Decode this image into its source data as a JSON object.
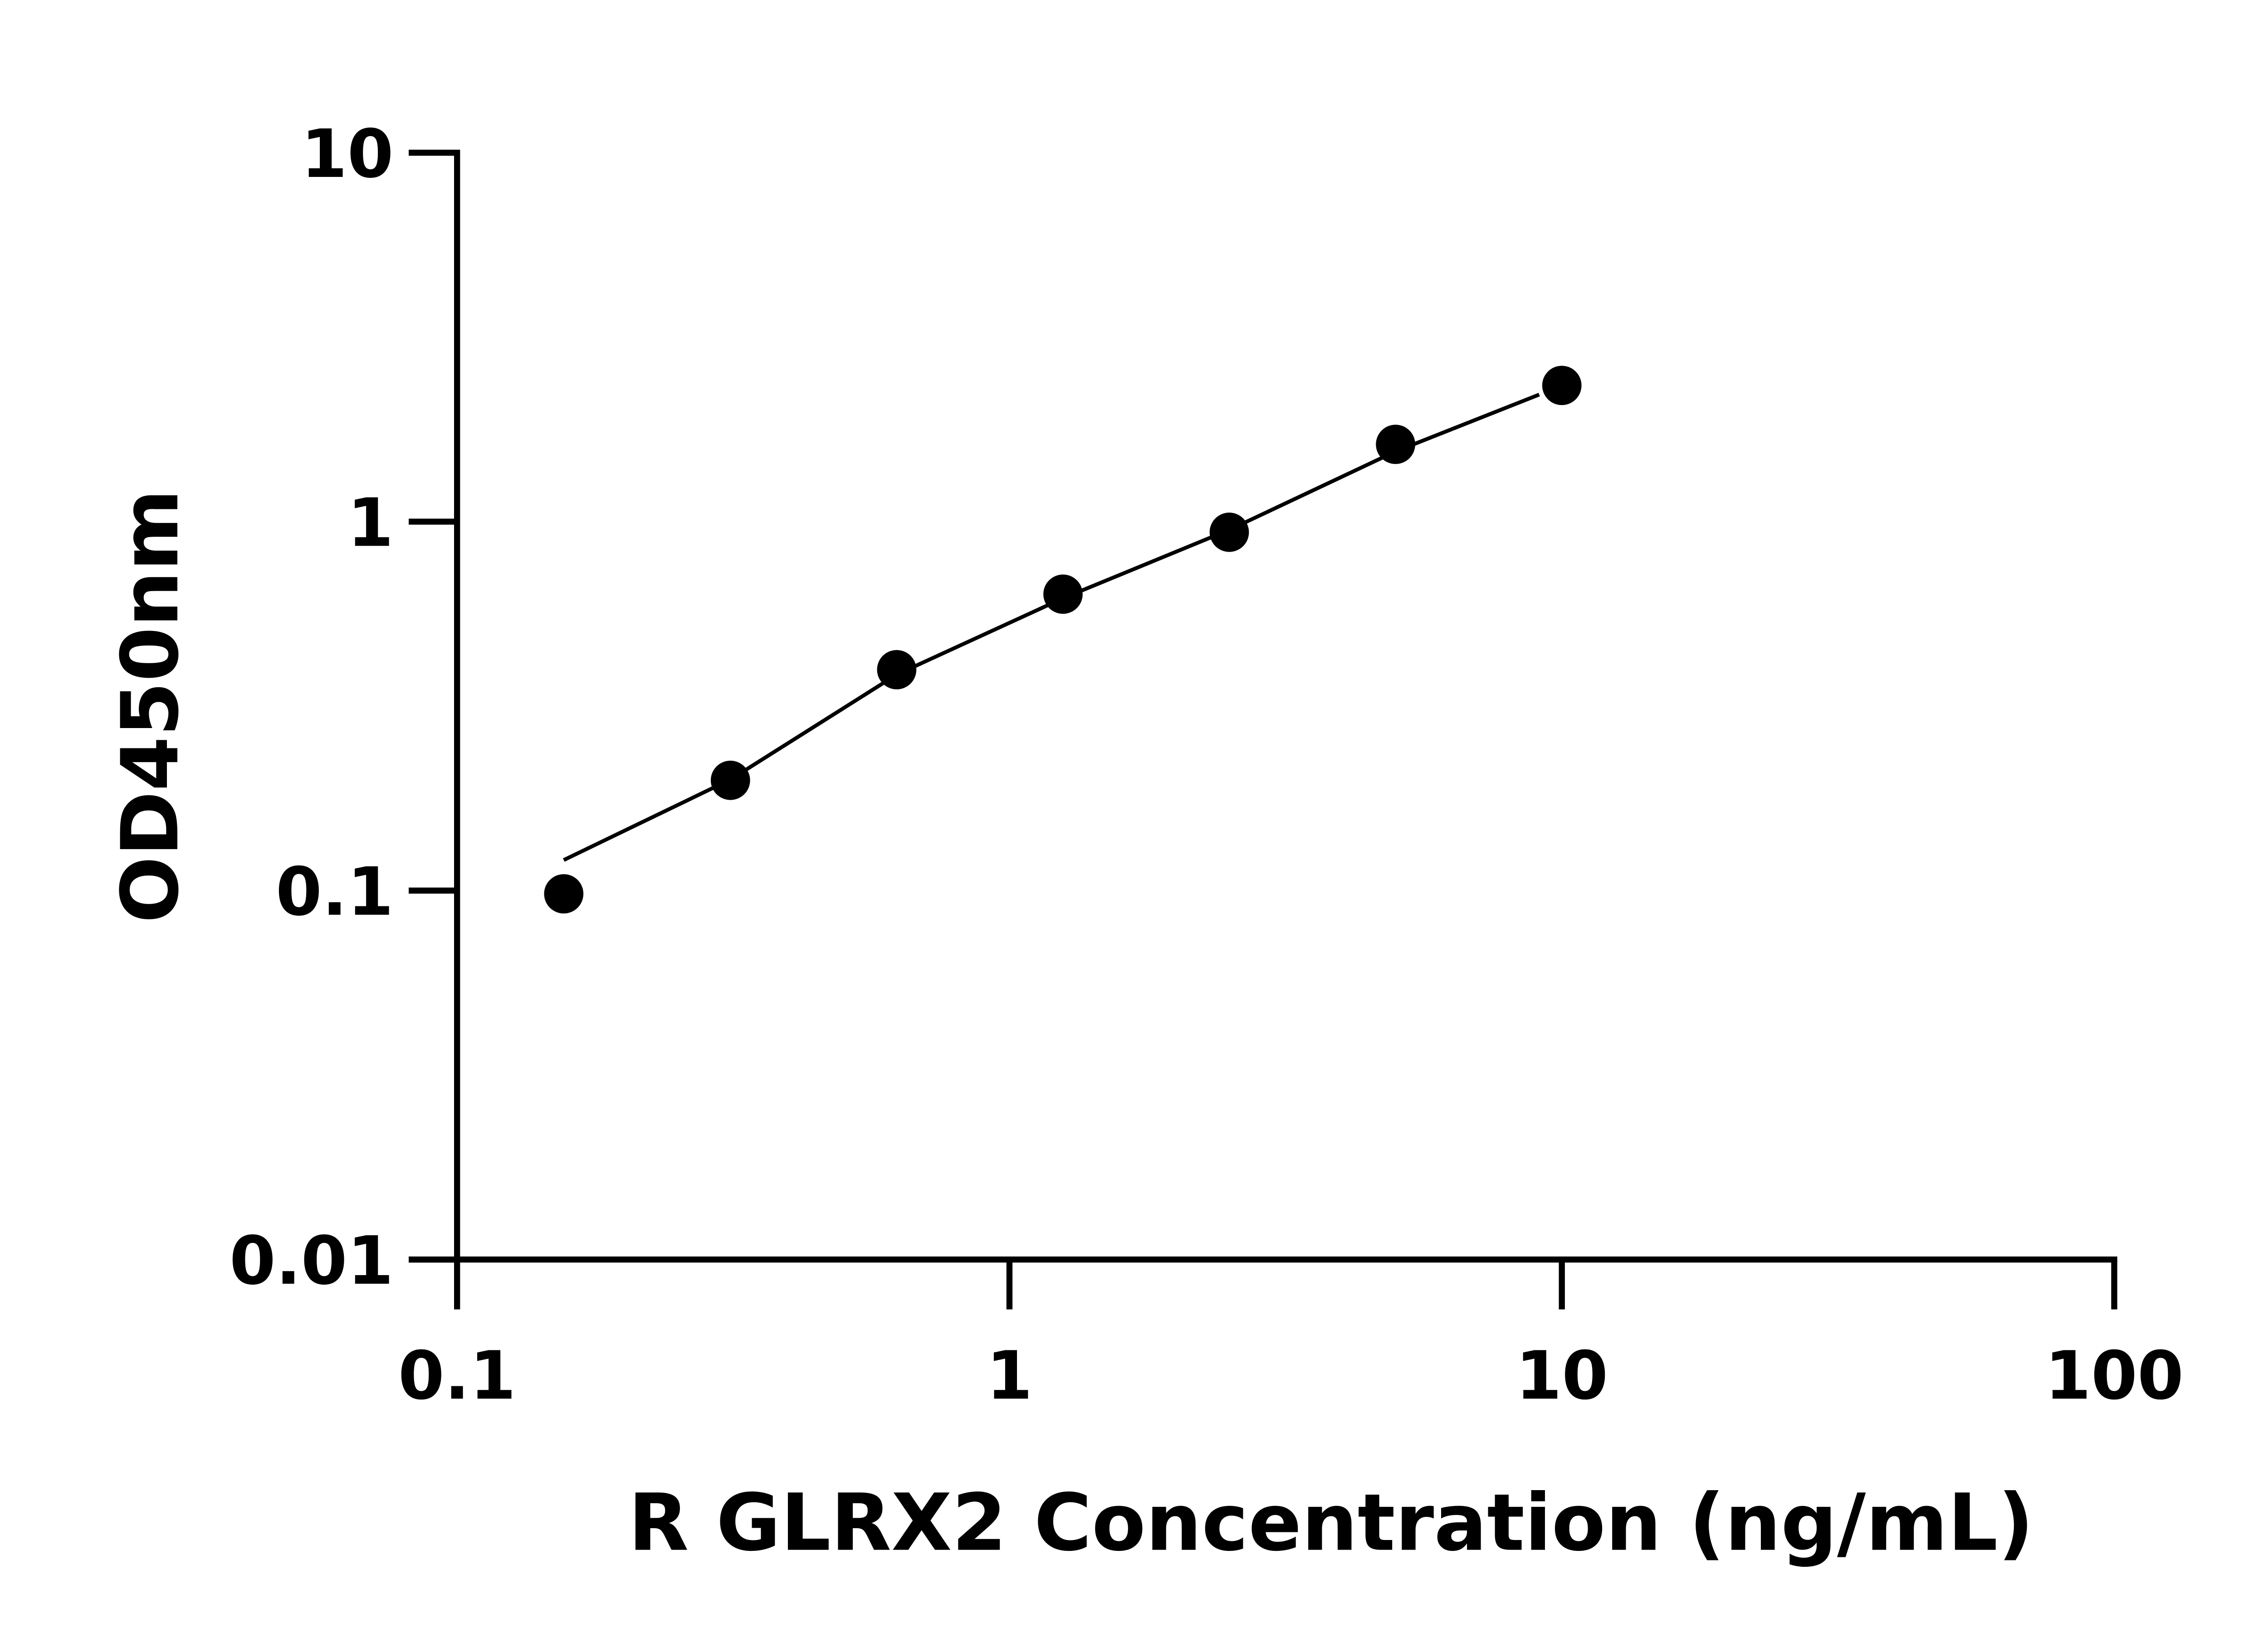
{
  "chart_data": {
    "type": "scatter",
    "xlabel": "R GLRX2 Concentration (ng/mL)",
    "ylabel": "OD450nm",
    "x_scale": "log",
    "y_scale": "log",
    "xlim": [
      0.1,
      100
    ],
    "ylim": [
      0.01,
      10
    ],
    "x_ticks": [
      "0.1",
      "1",
      "10",
      "100"
    ],
    "y_ticks": [
      "0.01",
      "0.1",
      "1",
      "10"
    ],
    "grid": false,
    "series": [
      {
        "x": [
          0.156,
          0.3125,
          0.625,
          1.25,
          2.5,
          5,
          10
        ],
        "y": [
          0.098,
          0.199,
          0.397,
          0.636,
          0.936,
          1.62,
          2.34
        ],
        "marker": "filled-circle",
        "color": "#000000"
      }
    ],
    "fit_curve": {
      "x": [
        0.156,
        0.3125,
        0.625,
        1.25,
        2.5,
        5,
        9.1
      ],
      "y": [
        0.121,
        0.2,
        0.385,
        0.62,
        0.95,
        1.55,
        2.21
      ],
      "color": "#000000"
    }
  }
}
